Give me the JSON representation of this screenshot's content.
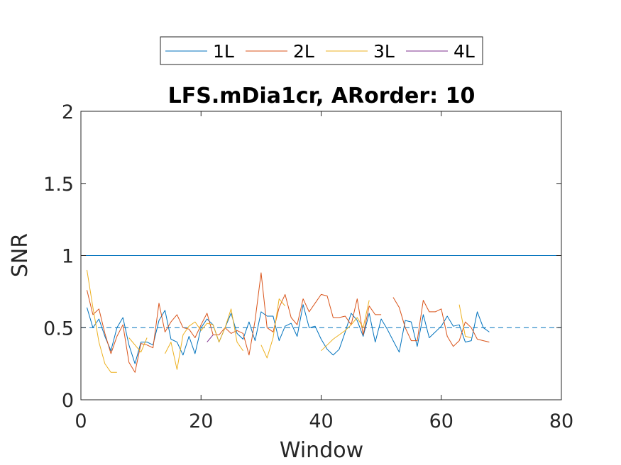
{
  "chart_data": {
    "type": "line",
    "title": "LFS.mDia1cr, ARorder: 10",
    "xlabel": "Window",
    "ylabel": "SNR",
    "xlim": [
      0,
      80
    ],
    "ylim": [
      0,
      2
    ],
    "xticks": [
      "0",
      "20",
      "40",
      "60",
      "80"
    ],
    "yticks": [
      "0",
      "0.5",
      "1",
      "1.5",
      "2"
    ],
    "grid": false,
    "legend_position": "top-center, outside, horizontal",
    "reference_lines": [
      {
        "y": 2,
        "style": "dashed",
        "color": "#0072BD"
      },
      {
        "y": 1,
        "style": "solid",
        "color": "#0072BD"
      },
      {
        "y": 0.5,
        "style": "dashed",
        "color": "#0072BD"
      }
    ],
    "series": [
      {
        "name": "1L",
        "color": "#0072BD",
        "x": [
          1,
          2,
          3,
          4,
          5,
          6,
          7,
          8,
          9,
          10,
          11,
          12,
          13,
          14,
          15,
          16,
          17,
          18,
          19,
          20,
          21,
          22,
          23,
          24,
          25,
          26,
          27,
          28,
          29,
          30,
          31,
          32,
          33,
          34,
          35,
          36,
          37,
          38,
          39,
          40,
          41,
          42,
          43,
          44,
          45,
          46,
          47,
          48,
          49,
          50,
          51,
          52,
          53,
          54,
          55,
          56,
          57,
          58,
          59,
          60,
          61,
          62,
          63,
          64,
          65,
          66,
          67,
          68
        ],
        "y": [
          0.64,
          0.5,
          0.56,
          0.44,
          0.34,
          0.5,
          0.57,
          0.38,
          0.25,
          0.4,
          0.4,
          0.38,
          0.55,
          0.62,
          0.42,
          0.4,
          0.31,
          0.44,
          0.32,
          0.5,
          0.56,
          0.52,
          0.4,
          0.5,
          0.6,
          0.46,
          0.42,
          0.54,
          0.41,
          0.61,
          0.58,
          0.58,
          0.41,
          0.51,
          0.53,
          0.44,
          0.66,
          0.5,
          0.51,
          0.42,
          0.35,
          0.31,
          0.35,
          0.47,
          0.6,
          0.55,
          0.44,
          0.6,
          0.4,
          0.56,
          0.49,
          0.41,
          0.33,
          0.55,
          0.54,
          0.37,
          0.59,
          0.43,
          0.47,
          0.51,
          0.58,
          0.51,
          0.52,
          0.4,
          0.41,
          0.61,
          0.5,
          0.47
        ]
      },
      {
        "name": "2L",
        "color": "#D95319",
        "segments": [
          {
            "x": [
              1,
              2,
              3,
              4,
              5,
              6,
              7,
              8,
              9,
              10,
              11,
              12,
              13,
              14,
              15,
              16,
              17,
              18,
              19,
              20,
              21,
              22,
              23,
              24,
              25,
              26,
              27,
              28,
              29,
              30,
              31,
              32,
              33,
              34,
              35,
              36,
              37,
              38,
              39,
              40,
              41,
              42,
              43,
              44,
              45,
              46,
              47,
              48,
              49,
              50
            ],
            "y": [
              0.76,
              0.59,
              0.63,
              0.46,
              0.32,
              0.44,
              0.52,
              0.26,
              0.19,
              0.39,
              0.38,
              0.36,
              0.67,
              0.47,
              0.54,
              0.59,
              0.5,
              0.49,
              0.43,
              0.52,
              0.6,
              0.45,
              0.45,
              0.5,
              0.46,
              0.48,
              0.46,
              0.31,
              0.55,
              0.88,
              0.5,
              0.47,
              0.64,
              0.73,
              0.57,
              0.52,
              0.7,
              0.61,
              0.67,
              0.73,
              0.72,
              0.57,
              0.57,
              0.58,
              0.52,
              0.7,
              0.45,
              0.65,
              0.59,
              0.59
            ]
          },
          {
            "x": [
              52,
              53,
              54,
              55,
              56,
              57,
              58,
              59,
              60,
              61,
              62,
              63,
              64,
              65,
              66,
              67,
              68
            ],
            "y": [
              0.71,
              0.64,
              0.5,
              0.41,
              0.41,
              0.69,
              0.61,
              0.61,
              0.63,
              0.44,
              0.37,
              0.41,
              0.54,
              0.5,
              0.42,
              0.41,
              0.4
            ]
          }
        ]
      },
      {
        "name": "3L",
        "color": "#EDB120",
        "segments": [
          {
            "x": [
              1,
              2,
              3,
              4,
              5,
              6
            ],
            "y": [
              0.9,
              0.64,
              0.4,
              0.25,
              0.19,
              0.19
            ]
          },
          {
            "x": [
              8,
              9,
              10,
              11
            ],
            "y": [
              0.43,
              0.38,
              0.33,
              0.43
            ]
          },
          {
            "x": [
              14,
              15,
              16,
              17,
              18,
              19,
              20,
              21,
              22,
              23,
              24,
              25,
              26,
              27
            ],
            "y": [
              0.32,
              0.4,
              0.21,
              0.45,
              0.51,
              0.54,
              0.48,
              0.53,
              0.52,
              0.4,
              0.5,
              0.63,
              0.4,
              0.34
            ]
          },
          {
            "x": [
              30,
              31,
              32,
              33,
              34
            ],
            "y": [
              0.38,
              0.29,
              0.43,
              0.7,
              0.65
            ]
          },
          {
            "x": [
              40,
              41,
              42,
              43,
              44,
              45,
              46,
              47,
              48
            ],
            "y": [
              0.34,
              0.38,
              0.42,
              0.45,
              0.48,
              0.52,
              0.57,
              0.5,
              0.69
            ]
          },
          {
            "x": [
              63,
              64,
              65
            ],
            "y": [
              0.66,
              0.44,
              0.43
            ]
          }
        ]
      },
      {
        "name": "4L",
        "color": "#7E2F8E",
        "segments": [
          {
            "x": [
              21,
              22
            ],
            "y": [
              0.4,
              0.45
            ]
          }
        ]
      }
    ]
  }
}
